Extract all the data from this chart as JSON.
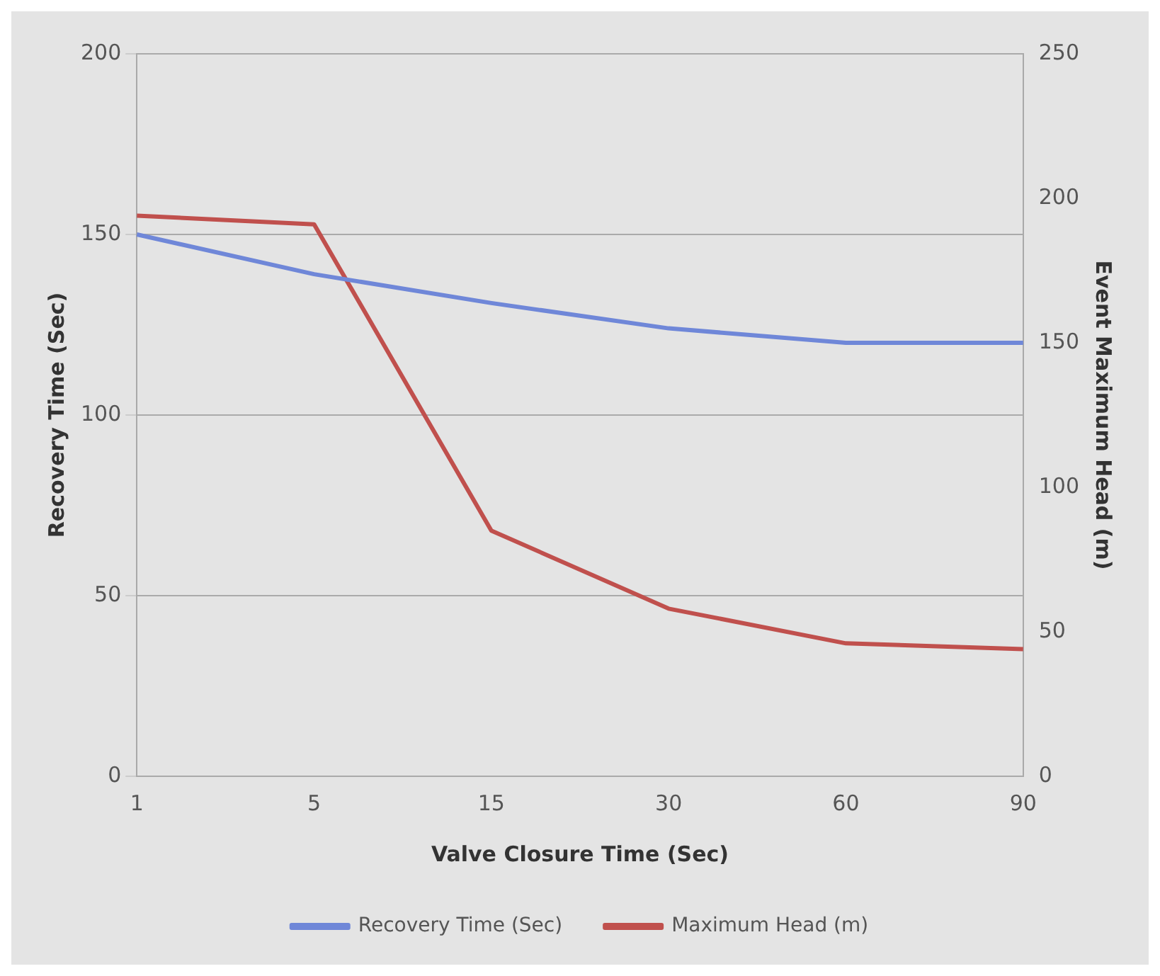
{
  "chart_data": {
    "type": "line",
    "xlabel": "Valve Closure Time (Sec)",
    "ylabel": "Recovery Time (Sec)",
    "y2label": "Event Maximum Head (m)",
    "categories": [
      "1",
      "5",
      "15",
      "30",
      "60",
      "90"
    ],
    "series": [
      {
        "name": "Recovery Time (Sec)",
        "color": "#6f87d8",
        "values": [
          150,
          139,
          131,
          124,
          120,
          120
        ]
      },
      {
        "name": "Maximum Head (m)",
        "color": "#c0504d",
        "axis": "y2",
        "values": [
          194,
          191,
          85,
          58,
          46,
          44
        ]
      }
    ],
    "ylim": [
      0,
      200
    ],
    "yticks": [
      0,
      50,
      100,
      150,
      200
    ],
    "y2lim": [
      0,
      250
    ],
    "y2ticks": [
      0,
      50,
      100,
      150,
      200,
      250
    ],
    "grid": "y",
    "legend": "bottom",
    "marker": "none",
    "line_style": "solid"
  }
}
